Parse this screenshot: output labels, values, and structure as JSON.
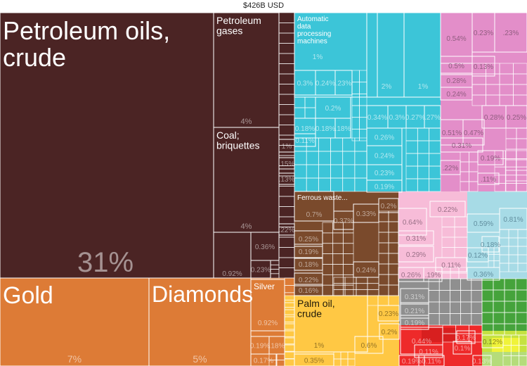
{
  "chart_data": {
    "type": "treemap",
    "title": "$426B USD",
    "colors": {
      "mineral": "#4b2424",
      "precious": "#dd7b36",
      "machinery": "#3cc5d8",
      "chemicals": "#e38ec9",
      "metals": "#7a4a2c",
      "plastics": "#f7bcd8",
      "textiles": "#a7dbe6",
      "animal_veg": "#ffc844",
      "instruments": "#8f8f8f",
      "transport": "#ee2a2a",
      "vegetable": "#45a33b",
      "foodstuffs": "#c5e241"
    },
    "tiles": [
      {
        "name": "Petroleum oils, crude",
        "value": 31,
        "value_label": "31%",
        "group": "mineral"
      },
      {
        "name": "Petroleum gases",
        "value": 4,
        "value_label": "4%",
        "group": "mineral"
      },
      {
        "name": "Coal; briquettes",
        "value": 4,
        "value_label": "4%",
        "group": "mineral"
      },
      {
        "name": "",
        "value": 0.92,
        "value_label": "0.92%",
        "group": "mineral"
      },
      {
        "name": "",
        "value": 0.36,
        "value_label": "0.36%",
        "group": "mineral"
      },
      {
        "name": "",
        "value": 0.23,
        "value_label": "0.23%",
        "group": "mineral"
      },
      {
        "name": "",
        "value": 1,
        "value_label": "1%",
        "group": "mineral"
      },
      {
        "name": "",
        "value": 0.15,
        "value_label": ".15%",
        "group": "mineral"
      },
      {
        "name": "",
        "value": 0.13,
        "value_label": ".13%",
        "group": "mineral"
      },
      {
        "name": "",
        "value": 0.22,
        "value_label": ".22%",
        "group": "mineral"
      },
      {
        "name": "Gold",
        "value": 7,
        "value_label": "7%",
        "group": "precious"
      },
      {
        "name": "Diamonds",
        "value": 5,
        "value_label": "5%",
        "group": "precious"
      },
      {
        "name": "Silver",
        "value": 0.92,
        "value_label": "0.92%",
        "group": "precious"
      },
      {
        "name": "",
        "value": 0.19,
        "value_label": "0.19%",
        "group": "precious"
      },
      {
        "name": "",
        "value": 0.18,
        "value_label": ".18%",
        "group": "precious"
      },
      {
        "name": "",
        "value": 0.17,
        "value_label": "0.17%",
        "group": "precious"
      },
      {
        "name": "Automatic data processing machines",
        "value": 1,
        "value_label": "1%",
        "group": "machinery"
      },
      {
        "name": "",
        "value": 2,
        "value_label": "2%",
        "group": "machinery"
      },
      {
        "name": "",
        "value": 1,
        "value_label": "1%",
        "group": "machinery"
      },
      {
        "name": "",
        "value": 0.3,
        "value_label": "0.3%",
        "group": "machinery"
      },
      {
        "name": "",
        "value": 0.24,
        "value_label": "0.24%",
        "group": "machinery"
      },
      {
        "name": "",
        "value": 0.23,
        "value_label": ".23%",
        "group": "machinery"
      },
      {
        "name": "",
        "value": 0.2,
        "value_label": "0.2%",
        "group": "machinery"
      },
      {
        "name": "",
        "value": 0.18,
        "value_label": "0.18%",
        "group": "machinery"
      },
      {
        "name": "",
        "value": 0.18,
        "value_label": "0.18%",
        "group": "machinery"
      },
      {
        "name": "",
        "value": 0.18,
        "value_label": ".18%",
        "group": "machinery"
      },
      {
        "name": "",
        "value": 0.11,
        "value_label": "0.11%",
        "group": "machinery"
      },
      {
        "name": "",
        "value": 0.34,
        "value_label": "0.34%",
        "group": "machinery"
      },
      {
        "name": "",
        "value": 0.3,
        "value_label": "0.3%",
        "group": "machinery"
      },
      {
        "name": "",
        "value": 0.27,
        "value_label": "0.27%",
        "group": "machinery"
      },
      {
        "name": "",
        "value": 0.27,
        "value_label": ".27%",
        "group": "machinery"
      },
      {
        "name": "",
        "value": 0.26,
        "value_label": "0.26%",
        "group": "machinery"
      },
      {
        "name": "",
        "value": 0.24,
        "value_label": "0.24%",
        "group": "machinery"
      },
      {
        "name": "",
        "value": 0.23,
        "value_label": "0.23%",
        "group": "machinery"
      },
      {
        "name": "",
        "value": 0.19,
        "value_label": "0.19%",
        "group": "machinery"
      },
      {
        "name": "",
        "value": 0.54,
        "value_label": "0.54%",
        "group": "chemicals"
      },
      {
        "name": "",
        "value": 0.23,
        "value_label": "0.23%",
        "group": "chemicals"
      },
      {
        "name": "",
        "value": 0.23,
        "value_label": ".23%",
        "group": "chemicals"
      },
      {
        "name": "",
        "value": 0.5,
        "value_label": "0.5%",
        "group": "chemicals"
      },
      {
        "name": "",
        "value": 0.13,
        "value_label": "0.13%",
        "group": "chemicals"
      },
      {
        "name": "",
        "value": 0.28,
        "value_label": "0.28%",
        "group": "chemicals"
      },
      {
        "name": "",
        "value": 0.24,
        "value_label": "0.24%",
        "group": "chemicals"
      },
      {
        "name": "",
        "value": 0.28,
        "value_label": "0.28%",
        "group": "chemicals"
      },
      {
        "name": "",
        "value": 0.25,
        "value_label": "0.25%",
        "group": "chemicals"
      },
      {
        "name": "",
        "value": 0.51,
        "value_label": "0.51%",
        "group": "chemicals"
      },
      {
        "name": "",
        "value": 0.47,
        "value_label": "0.47%",
        "group": "chemicals"
      },
      {
        "name": "",
        "value": 0.31,
        "value_label": "0.31%",
        "group": "chemicals"
      },
      {
        "name": "",
        "value": 0.19,
        "value_label": "0.19%",
        "group": "chemicals"
      },
      {
        "name": "",
        "value": 0.22,
        "value_label": ".22%",
        "group": "chemicals"
      },
      {
        "name": "",
        "value": 0.11,
        "value_label": ".11%",
        "group": "chemicals"
      },
      {
        "name": "Ferrous waste...",
        "value": 0.7,
        "value_label": "0.7%",
        "group": "metals"
      },
      {
        "name": "",
        "value": 0.37,
        "value_label": "0.37%",
        "group": "metals"
      },
      {
        "name": "",
        "value": 0.33,
        "value_label": "0.33%",
        "group": "metals"
      },
      {
        "name": "",
        "value": 0.2,
        "value_label": "0.2%",
        "group": "metals"
      },
      {
        "name": "",
        "value": 0.25,
        "value_label": "0.25%",
        "group": "metals"
      },
      {
        "name": "",
        "value": 0.19,
        "value_label": "0.19%",
        "group": "metals"
      },
      {
        "name": "",
        "value": 0.18,
        "value_label": "0.18%",
        "group": "metals"
      },
      {
        "name": "",
        "value": 0.24,
        "value_label": "0.24%",
        "group": "metals"
      },
      {
        "name": "",
        "value": 0.22,
        "value_label": "0.22%",
        "group": "metals"
      },
      {
        "name": "",
        "value": 0.16,
        "value_label": "0.16%",
        "group": "metals"
      },
      {
        "name": "",
        "value": 0.64,
        "value_label": "0.64%",
        "group": "plastics"
      },
      {
        "name": "",
        "value": 0.22,
        "value_label": "0.22%",
        "group": "plastics"
      },
      {
        "name": "",
        "value": 0.31,
        "value_label": "0.31%",
        "group": "plastics"
      },
      {
        "name": "",
        "value": 0.29,
        "value_label": "0.29%",
        "group": "plastics"
      },
      {
        "name": "",
        "value": 0.11,
        "value_label": "0.11%",
        "group": "plastics"
      },
      {
        "name": "",
        "value": 0.26,
        "value_label": "0.26%",
        "group": "plastics"
      },
      {
        "name": "",
        "value": 0.19,
        "value_label": ".19%",
        "group": "plastics"
      },
      {
        "name": "",
        "value": 0.59,
        "value_label": "0.59%",
        "group": "textiles"
      },
      {
        "name": "",
        "value": 0.81,
        "value_label": "0.81%",
        "group": "textiles"
      },
      {
        "name": "",
        "value": 0.18,
        "value_label": "0.18%",
        "group": "textiles"
      },
      {
        "name": "",
        "value": 0.12,
        "value_label": "0.12%",
        "group": "textiles"
      },
      {
        "name": "",
        "value": 0.36,
        "value_label": "0.36%",
        "group": "textiles"
      },
      {
        "name": "Palm oil, crude",
        "value": 1,
        "value_label": "1%",
        "group": "animal_veg"
      },
      {
        "name": "",
        "value": 0.6,
        "value_label": "0.6%",
        "group": "animal_veg"
      },
      {
        "name": "",
        "value": 0.23,
        "value_label": "0.23%",
        "group": "animal_veg"
      },
      {
        "name": "",
        "value": 0.2,
        "value_label": "0.2%",
        "group": "animal_veg"
      },
      {
        "name": "",
        "value": 0.35,
        "value_label": "0.35%",
        "group": "animal_veg"
      },
      {
        "name": "",
        "value": 0.31,
        "value_label": "0.31%",
        "group": "instruments"
      },
      {
        "name": "",
        "value": 0.21,
        "value_label": "0.21%",
        "group": "instruments"
      },
      {
        "name": "",
        "value": 0.19,
        "value_label": "0.19%",
        "group": "instruments"
      },
      {
        "name": "",
        "value": 0.44,
        "value_label": "0.44%",
        "group": "transport"
      },
      {
        "name": "",
        "value": 0.17,
        "value_label": "0.17%",
        "group": "transport"
      },
      {
        "name": "",
        "value": 0.11,
        "value_label": "0.11%",
        "group": "transport"
      },
      {
        "name": "",
        "value": 0.1,
        "value_label": "0.1%",
        "group": "transport"
      },
      {
        "name": "",
        "value": 0.19,
        "value_label": "0.19%",
        "group": "transport"
      },
      {
        "name": "",
        "value": 0.11,
        "value_label": "0.11%",
        "group": "transport"
      },
      {
        "name": "",
        "value": 0.13,
        "value_label": "0.13%",
        "group": "transport"
      },
      {
        "name": "",
        "value": 0.12,
        "value_label": "0.12%",
        "group": "foodstuffs"
      }
    ]
  }
}
